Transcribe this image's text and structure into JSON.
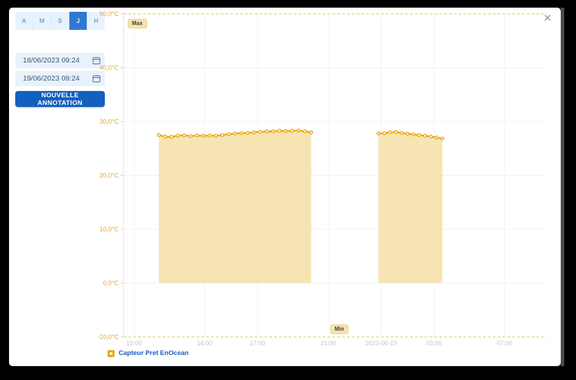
{
  "modal": {
    "close_icon": "✕"
  },
  "sidebar": {
    "interval_tabs": [
      {
        "label": "A",
        "selected": false
      },
      {
        "label": "M",
        "selected": false
      },
      {
        "label": "S",
        "selected": false
      },
      {
        "label": "J",
        "selected": true
      },
      {
        "label": "H",
        "selected": false
      }
    ],
    "start_date": "18/06/2023 09:24",
    "end_date": "19/06/2023 09:24",
    "new_annotation_label": "NOUVELLE ANNOTATION"
  },
  "chart_data": {
    "type": "area",
    "title": "",
    "xlabel": "",
    "ylabel": "",
    "y_unit": "°C",
    "ylim": [
      -10,
      50
    ],
    "x_domain_hours": [
      9.4,
      33.4
    ],
    "x_range": [
      "18/06/2023 09:24",
      "19/06/2023 09:24"
    ],
    "grid": true,
    "legend_position": "bottom-left",
    "y_ticks": [
      {
        "value": 50,
        "label": "50,0°C"
      },
      {
        "value": 40,
        "label": "40,0°C"
      },
      {
        "value": 30,
        "label": "30,0°C"
      },
      {
        "value": 20,
        "label": "20,0°C"
      },
      {
        "value": 10,
        "label": "10,0°C"
      },
      {
        "value": 0,
        "label": "0,0°C"
      },
      {
        "value": -10,
        "label": "-10,0°C"
      }
    ],
    "x_ticks": [
      {
        "hour": 10,
        "label": "10:00"
      },
      {
        "hour": 14,
        "label": "14:00"
      },
      {
        "hour": 17,
        "label": "17:00"
      },
      {
        "hour": 21,
        "label": "21:00"
      },
      {
        "hour": 24,
        "label": "2023-06-19"
      },
      {
        "hour": 27,
        "label": "03:00"
      },
      {
        "hour": 31,
        "label": "07:00"
      }
    ],
    "max_line": {
      "value": 50,
      "label": "Max"
    },
    "min_line": {
      "value": -10,
      "label": "Min"
    },
    "area_baseline": 0,
    "legend": [
      {
        "label": "Capteur Pret EnOcean",
        "color": "#e7a912"
      }
    ],
    "colors": {
      "line": "#e7a912",
      "marker_fill": "#ffffff",
      "area": "#f7e4b3",
      "threshold_dash": "#e8cd85",
      "grid": "#f1f1f1",
      "axis": "#e2e2e2",
      "tick": "#cfcfcf",
      "x_label": "#c4c4c4",
      "y_label": "#e0a33e"
    },
    "series": [
      {
        "name": "Capteur Pret EnOcean",
        "unit": "°C",
        "segments": [
          [
            [
              11.4,
              27.5
            ],
            [
              11.76,
              27.2
            ],
            [
              12.12,
              27.15
            ],
            [
              12.48,
              27.4
            ],
            [
              12.84,
              27.45
            ],
            [
              13.2,
              27.3
            ],
            [
              13.56,
              27.4
            ],
            [
              13.92,
              27.35
            ],
            [
              14.28,
              27.4
            ],
            [
              14.64,
              27.35
            ],
            [
              15.0,
              27.5
            ],
            [
              15.36,
              27.65
            ],
            [
              15.72,
              27.8
            ],
            [
              16.08,
              27.85
            ],
            [
              16.44,
              27.9
            ],
            [
              16.8,
              28.0
            ],
            [
              17.16,
              28.1
            ],
            [
              17.52,
              28.15
            ],
            [
              17.88,
              28.2
            ],
            [
              18.24,
              28.3
            ],
            [
              18.6,
              28.25
            ],
            [
              18.96,
              28.3
            ],
            [
              19.32,
              28.35
            ],
            [
              19.68,
              28.2
            ],
            [
              20.04,
              28.0
            ]
          ],
          [
            [
              23.85,
              27.8
            ],
            [
              24.18,
              27.85
            ],
            [
              24.51,
              28.0
            ],
            [
              24.84,
              28.05
            ],
            [
              25.17,
              27.9
            ],
            [
              25.5,
              27.75
            ],
            [
              25.83,
              27.6
            ],
            [
              26.16,
              27.5
            ],
            [
              26.49,
              27.35
            ],
            [
              26.82,
              27.2
            ],
            [
              27.15,
              27.05
            ],
            [
              27.48,
              26.85
            ]
          ]
        ]
      }
    ]
  }
}
